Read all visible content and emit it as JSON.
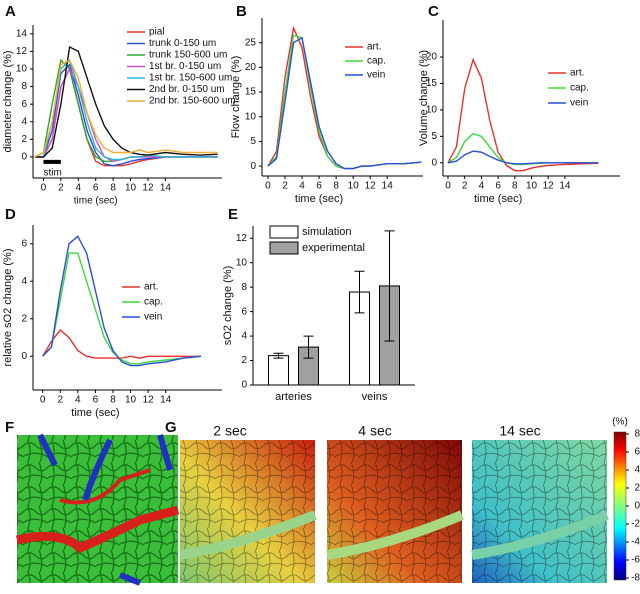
{
  "chart_data": [
    {
      "type": "line",
      "panel_label": "A",
      "ylabel": "diameter change (%)",
      "xlabel": "time (sec)",
      "annotation": "stim",
      "stim_interval": [
        0,
        2
      ],
      "x": [
        -1,
        0,
        1,
        2,
        3,
        4,
        5,
        6,
        7,
        8,
        9,
        10,
        11,
        12,
        14,
        16,
        18,
        20
      ],
      "series": [
        {
          "name": "pial",
          "color": "#e8312a",
          "values": [
            0,
            0,
            2,
            8,
            10,
            6,
            2,
            -0.5,
            -1,
            -1,
            -1,
            -0.8,
            -0.5,
            -0.3,
            0,
            0,
            0,
            0
          ]
        },
        {
          "name": "trunk 0-150 um",
          "color": "#2a4fd6",
          "values": [
            0,
            0,
            3,
            9.5,
            10.5,
            7,
            3,
            0.5,
            -0.8,
            -1,
            -0.8,
            -0.5,
            -0.3,
            -0.2,
            0,
            0,
            0,
            0
          ]
        },
        {
          "name": "trunk 150-600 um",
          "color": "#2aa82a",
          "values": [
            0,
            0.5,
            6,
            11,
            10,
            6,
            2,
            0,
            -0.5,
            -0.5,
            -0.3,
            0,
            0,
            0,
            0,
            0,
            0,
            0
          ]
        },
        {
          "name": "1st br. 0-150 um",
          "color": "#d04fd0",
          "values": [
            0,
            0,
            2,
            8,
            10,
            8,
            5,
            2,
            0,
            -0.5,
            -0.3,
            0,
            0,
            0,
            0,
            0,
            0,
            0
          ]
        },
        {
          "name": "1st br. 150-600 um",
          "color": "#2ab8d8",
          "values": [
            0,
            0,
            4,
            10,
            11,
            8,
            4,
            1,
            0,
            -0.3,
            -0.3,
            0,
            0,
            0.2,
            0,
            0,
            0,
            0
          ]
        },
        {
          "name": "2nd br. 0-150 um",
          "color": "#111111",
          "values": [
            0,
            0,
            1,
            6,
            12.5,
            12,
            9,
            6,
            3.5,
            2,
            1,
            0.5,
            0.3,
            0.2,
            0.5,
            0.3,
            0.2,
            0.3
          ]
        },
        {
          "name": "2nd br. 150-600 um",
          "color": "#f0b030",
          "values": [
            0,
            0.5,
            4,
            10.5,
            11,
            9,
            5,
            2.5,
            1,
            0.5,
            0.5,
            0.5,
            0.8,
            0.5,
            0.8,
            0.5,
            0.5,
            0.5
          ]
        }
      ],
      "xlim": [
        -1.2,
        20.5
      ],
      "ylim": [
        -2.4,
        15
      ],
      "xticks": [
        0,
        2,
        4,
        6,
        8,
        10,
        12,
        14
      ],
      "yticks": [
        0,
        2,
        4,
        6,
        8,
        10,
        12,
        14
      ]
    },
    {
      "type": "line",
      "panel_label": "B",
      "ylabel": "Flow change (%)",
      "xlabel": "time (sec)",
      "x": [
        0,
        1,
        2,
        3,
        4,
        5,
        6,
        7,
        8,
        9,
        10,
        11,
        12,
        14,
        16,
        18
      ],
      "series": [
        {
          "name": "art.",
          "color": "#e8312a",
          "values": [
            0,
            3,
            18,
            28,
            24,
            14,
            6,
            2,
            0,
            -0.5,
            -0.5,
            0,
            0,
            0.5,
            0.5,
            0.8
          ]
        },
        {
          "name": "cap.",
          "color": "#3fd63f",
          "values": [
            0,
            2,
            15,
            26.5,
            26,
            16,
            7,
            2,
            0,
            -0.5,
            -0.5,
            0,
            0,
            0.5,
            0.5,
            0.8
          ]
        },
        {
          "name": "vein",
          "color": "#2a4fd6",
          "values": [
            0,
            1.5,
            13,
            25,
            26,
            17,
            8,
            3,
            0.5,
            -0.5,
            -0.5,
            0,
            0,
            0.5,
            0.5,
            0.8
          ]
        }
      ],
      "xlim": [
        -0.7,
        18.2
      ],
      "ylim": [
        -2,
        30
      ],
      "xticks": [
        0,
        2,
        4,
        6,
        8,
        10,
        12,
        14
      ],
      "yticks": [
        0,
        5,
        10,
        15,
        20,
        25
      ]
    },
    {
      "type": "line",
      "panel_label": "C",
      "ylabel": "Volume change (%)",
      "xlabel": "time (sec)",
      "x": [
        0,
        1,
        2,
        3,
        4,
        5,
        6,
        7,
        8,
        9,
        10,
        11,
        12,
        14,
        16,
        18
      ],
      "series": [
        {
          "name": "art.",
          "color": "#e8312a",
          "values": [
            0,
            3,
            14,
            19.5,
            16,
            8,
            2,
            -0.5,
            -1.5,
            -1.5,
            -1,
            -0.7,
            -0.5,
            -0.3,
            -0.2,
            -0.1
          ]
        },
        {
          "name": "cap.",
          "color": "#3fd63f",
          "values": [
            0,
            1,
            4,
            5.5,
            5,
            3,
            1,
            0,
            -0.3,
            -0.3,
            -0.2,
            -0.1,
            0,
            0,
            0,
            0
          ]
        },
        {
          "name": "vein",
          "color": "#2a4fd6",
          "values": [
            0,
            0.3,
            1.5,
            2.2,
            2,
            1.2,
            0.5,
            0,
            -0.2,
            -0.2,
            -0.1,
            0,
            0,
            0,
            0,
            0
          ]
        }
      ],
      "xlim": [
        -0.6,
        20.6
      ],
      "ylim": [
        -2.5,
        27
      ],
      "xticks": [
        0,
        2,
        4,
        6,
        8,
        10,
        12,
        14
      ],
      "yticks": [
        0,
        5,
        10,
        15,
        20
      ]
    },
    {
      "type": "line",
      "panel_label": "D",
      "ylabel": "relative sO2 change (%)",
      "xlabel": "time (sec)",
      "x": [
        0,
        1,
        2,
        3,
        4,
        5,
        6,
        7,
        8,
        9,
        10,
        11,
        12,
        14,
        16,
        18
      ],
      "series": [
        {
          "name": "art.",
          "color": "#e8312a",
          "values": [
            0,
            0.8,
            1.4,
            1,
            0.3,
            0,
            -0.1,
            -0.1,
            -0.1,
            -0.1,
            0,
            -0.1,
            0,
            0,
            0,
            0
          ]
        },
        {
          "name": "cap.",
          "color": "#3fd63f",
          "values": [
            0,
            0.5,
            3,
            5.5,
            5.5,
            4,
            2.5,
            1,
            0.2,
            -0.2,
            -0.4,
            -0.4,
            -0.3,
            -0.2,
            -0.1,
            0
          ]
        },
        {
          "name": "vein",
          "color": "#2a4fd6",
          "values": [
            0,
            0.5,
            3.5,
            6,
            6.4,
            5.5,
            3.5,
            1.5,
            0.3,
            -0.3,
            -0.5,
            -0.5,
            -0.4,
            -0.3,
            -0.1,
            0
          ]
        }
      ],
      "xlim": [
        -1.1,
        20.4
      ],
      "ylim": [
        -1.8,
        7
      ],
      "xticks": [
        0,
        2,
        4,
        6,
        8,
        10,
        12,
        14
      ],
      "yticks": [
        0,
        2,
        4,
        6
      ]
    },
    {
      "type": "bar",
      "panel_label": "E",
      "ylabel": "sO2 change (%)",
      "categories": [
        "arteries",
        "veins"
      ],
      "series": [
        {
          "name": "simulation",
          "color": "#ffffff",
          "values": [
            2.4,
            7.6
          ],
          "errors": [
            0.2,
            1.7
          ]
        },
        {
          "name": "experimental",
          "color": "#a0a0a0",
          "values": [
            3.1,
            8.1
          ],
          "errors": [
            0.9,
            4.5
          ]
        }
      ],
      "ylim": [
        0,
        13
      ],
      "yticks": [
        0,
        2,
        4,
        6,
        8,
        10,
        12
      ]
    }
  ],
  "renderings": {
    "panel_labels": [
      "F",
      "G"
    ],
    "frames": [
      "2 sec",
      "4 sec",
      "14 sec"
    ],
    "colorbar": {
      "title": "(%)",
      "lim": [
        -8,
        8
      ],
      "ticks": [
        8,
        6,
        4,
        2,
        0,
        -2,
        -4,
        -6,
        -8
      ]
    }
  }
}
